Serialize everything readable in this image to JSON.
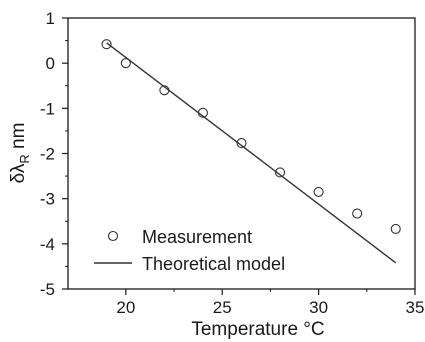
{
  "chart_data": {
    "type": "scatter",
    "xlabel": "Temperature °C",
    "ylabel_main": "δλ",
    "ylabel_sub": "R",
    "ylabel_unit": " nm",
    "xlim": [
      17,
      35
    ],
    "ylim": [
      -5,
      1
    ],
    "x_ticks": [
      20,
      25,
      30,
      35
    ],
    "y_ticks": [
      1,
      0,
      -1,
      -2,
      -3,
      -4,
      -5
    ],
    "grid": false,
    "legend_position": "bottom-left",
    "series": [
      {
        "name": "Measurement",
        "kind": "markers",
        "marker": "open-circle",
        "color": "#333333",
        "x": [
          19,
          20,
          22,
          24,
          26,
          28,
          30,
          32,
          34
        ],
        "y": [
          0.42,
          0.0,
          -0.6,
          -1.1,
          -1.77,
          -2.42,
          -2.85,
          -3.33,
          -3.67
        ]
      },
      {
        "name": "Theoretical model",
        "kind": "line",
        "color": "#333333",
        "x": [
          19,
          34
        ],
        "y": [
          0.45,
          -4.42
        ]
      }
    ]
  }
}
